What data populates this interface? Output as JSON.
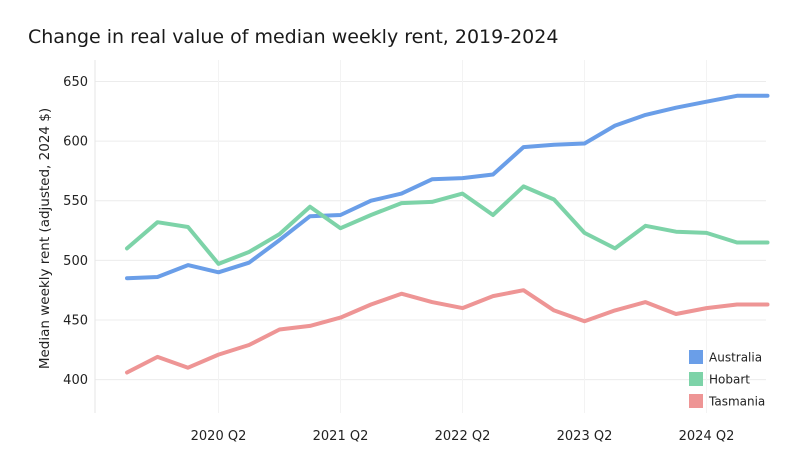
{
  "chart_data": {
    "type": "line",
    "title": "Change in real value of median weekly rent, 2019-2024",
    "xlabel": "",
    "ylabel": "Median weekly rent (adjusted, 2024 $)",
    "x": [
      "2019 Q3",
      "2019 Q4",
      "2020 Q1",
      "2020 Q2",
      "2020 Q3",
      "2020 Q4",
      "2021 Q1",
      "2021 Q2",
      "2021 Q3",
      "2021 Q4",
      "2022 Q1",
      "2022 Q2",
      "2022 Q3",
      "2022 Q4",
      "2023 Q1",
      "2023 Q2",
      "2023 Q3",
      "2023 Q4",
      "2024 Q1",
      "2024 Q2",
      "2024 Q3",
      "2024 Q4"
    ],
    "x_tick_labels": [
      "2020 Q2",
      "2021 Q2",
      "2022 Q2",
      "2023 Q2",
      "2024 Q2"
    ],
    "yticks": [
      400,
      450,
      500,
      550,
      600,
      650
    ],
    "ylim": [
      372,
      668
    ],
    "grid": true,
    "legend": "bottom-right",
    "series": [
      {
        "name": "Australia",
        "color": "#6a9ee8",
        "values": [
          485,
          486,
          496,
          490,
          498,
          517,
          537,
          538,
          550,
          556,
          568,
          569,
          572,
          595,
          597,
          598,
          613,
          622,
          628,
          633,
          638,
          638
        ]
      },
      {
        "name": "Hobart",
        "color": "#7dd3a8",
        "values": [
          510,
          532,
          528,
          497,
          507,
          522,
          545,
          527,
          538,
          548,
          549,
          556,
          538,
          562,
          551,
          523,
          510,
          529,
          524,
          523,
          515,
          515
        ]
      },
      {
        "name": "Tasmania",
        "color": "#ee9595",
        "values": [
          406,
          419,
          410,
          421,
          429,
          442,
          445,
          452,
          463,
          472,
          465,
          460,
          470,
          475,
          458,
          449,
          458,
          465,
          455,
          460,
          463,
          463
        ]
      }
    ]
  }
}
